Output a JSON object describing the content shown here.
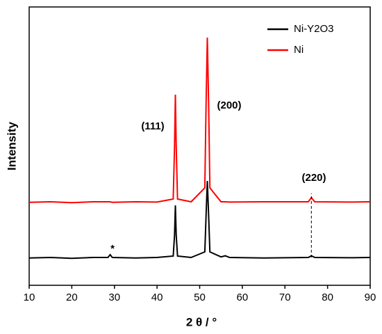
{
  "chart_data": {
    "type": "line",
    "x_label": "2 θ / °",
    "y_label": "Intensity",
    "xlim": [
      10,
      90
    ],
    "xticks": [
      10,
      20,
      30,
      40,
      50,
      60,
      70,
      80,
      90
    ],
    "ylim": [
      0,
      100
    ],
    "legend_position": "upper right",
    "x": [
      10,
      15,
      20,
      25,
      28.5,
      29,
      29.5,
      35,
      40,
      43.8,
      44.1,
      44.3,
      44.5,
      44.8,
      48,
      51.2,
      51.5,
      51.8,
      52.1,
      52.4,
      55,
      56,
      57,
      65,
      75.5,
      76.2,
      77,
      85,
      90
    ],
    "series": [
      {
        "name": "Ni-Y2O3",
        "color": "#000000",
        "values": [
          9.8,
          10,
          9.7,
          10,
          10,
          11,
          10,
          9.8,
          10,
          10.5,
          18,
          28.7,
          18,
          10.5,
          10,
          12,
          25,
          37.5,
          25,
          12,
          10.2,
          10.6,
          10,
          9.8,
          10,
          10.6,
          10,
          9.9,
          10
        ]
      },
      {
        "name": "Ni",
        "color": "#ff0000",
        "values": [
          29.8,
          30,
          29.7,
          30,
          30,
          30,
          29.8,
          30,
          29.9,
          31,
          50,
          68.5,
          50,
          31,
          30,
          35,
          65,
          89,
          65,
          35,
          30,
          30,
          29.9,
          30,
          30,
          31.5,
          30,
          29.9,
          30
        ]
      }
    ],
    "annotations": [
      "(111)",
      "(200)",
      "(220)",
      "*"
    ],
    "reference_line_x": 76.2
  }
}
